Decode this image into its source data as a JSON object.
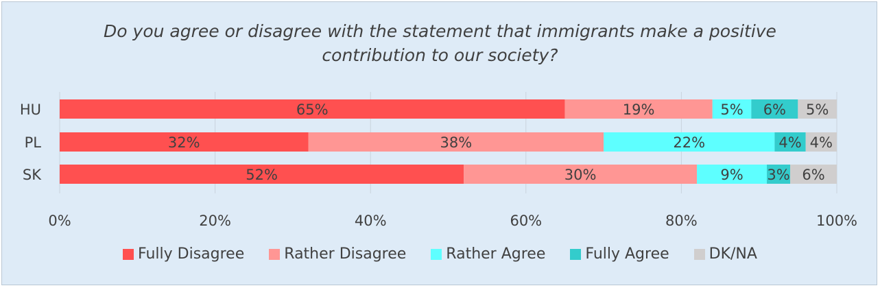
{
  "chart_data": {
    "type": "bar",
    "orientation": "horizontal",
    "stacked": true,
    "title_line1": "Do you agree or disagree with the statement that immigrants make a positive",
    "title_line2": "contribution to our society?",
    "categories": [
      "HU",
      "PL",
      "SK"
    ],
    "series": [
      {
        "name": "Fully Disagree",
        "color": "#ff5050",
        "values": [
          65,
          32,
          52
        ]
      },
      {
        "name": "Rather Disagree",
        "color": "#ff9694",
        "values": [
          19,
          38,
          30
        ]
      },
      {
        "name": "Rather Agree",
        "color": "#5effff",
        "values": [
          5,
          22,
          9
        ]
      },
      {
        "name": "Fully Agree",
        "color": "#33cccc",
        "values": [
          6,
          4,
          3
        ]
      },
      {
        "name": "DK/NA",
        "color": "#d0cece",
        "values": [
          5,
          4,
          6
        ]
      }
    ],
    "data_labels": [
      [
        "65%",
        "19%",
        "5%",
        "6%",
        "5%"
      ],
      [
        "32%",
        "38%",
        "22%",
        "4%",
        "4%"
      ],
      [
        "52%",
        "30%",
        "9%",
        "3%",
        "6%"
      ]
    ],
    "x_ticks": [
      "0%",
      "20%",
      "40%",
      "60%",
      "80%",
      "100%"
    ],
    "xlim": [
      0,
      100
    ],
    "grid": true,
    "legend_position": "bottom"
  }
}
